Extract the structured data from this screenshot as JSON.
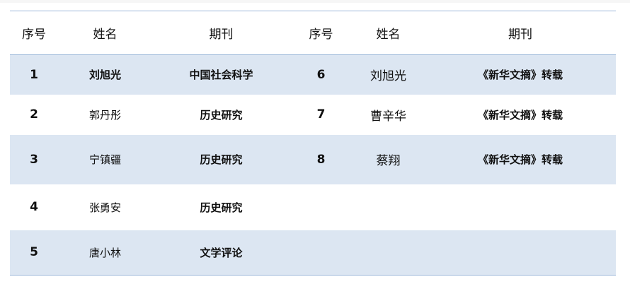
{
  "headers": [
    "序号",
    "姓名",
    "期刊",
    "序号",
    "姓名",
    "期刊"
  ],
  "rows": [
    {
      "no": "1",
      "name": "刘旭光",
      "journal": "中国社会科学",
      "no2": "6",
      "name2": "刘旭光",
      "journal2": "《新华文摘》转载"
    },
    {
      "no": "2",
      "name": "郭丹彤",
      "journal": "历史研究",
      "no2": "7",
      "name2": "曹辛华",
      "journal2": "《新华文摘》转载"
    },
    {
      "no": "3",
      "name": "宁镇疆",
      "journal": "历史研究",
      "no2": "8",
      "name2": "蔡翔",
      "journal2": "《新华文摘》转载"
    },
    {
      "no": "4",
      "name": "张勇安",
      "journal": "历史研究",
      "no2": "",
      "name2": "",
      "journal2": ""
    },
    {
      "no": "5",
      "name": "唐小林",
      "journal": "文学评论",
      "no2": "",
      "name2": "",
      "journal2": ""
    }
  ],
  "colors": {
    "row_alt": "#dce6f2",
    "border": "#9bb7d9"
  }
}
